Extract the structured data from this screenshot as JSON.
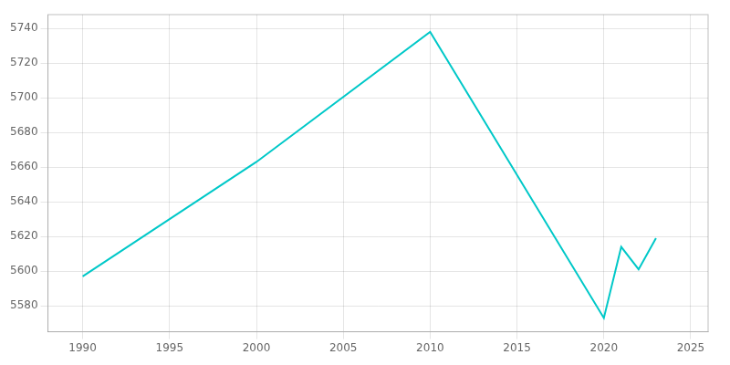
{
  "chart_data": {
    "type": "line",
    "x": [
      1990,
      2000,
      2010,
      2020,
      2021,
      2022,
      2023
    ],
    "values": [
      5597,
      5663,
      5738,
      5573,
      5614,
      5601,
      5619
    ],
    "color": "#00c8c8",
    "xlim": [
      1988,
      2026
    ],
    "ylim": [
      5565,
      5748
    ],
    "xticks": [
      1990,
      1995,
      2000,
      2005,
      2010,
      2015,
      2020,
      2025
    ],
    "yticks": [
      5580,
      5600,
      5620,
      5640,
      5660,
      5680,
      5700,
      5720,
      5740
    ],
    "grid": true
  }
}
